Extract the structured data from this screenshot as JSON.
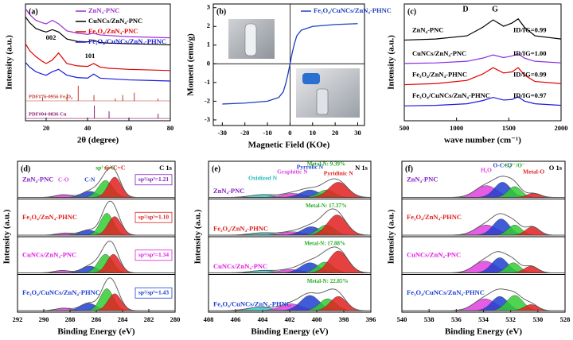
{
  "chart_data": [
    {
      "type": "xrd",
      "panel": "(a)",
      "x_label": "2θ (degree)",
      "y_label": "Intensity (a.u.)",
      "xlim": [
        10,
        80
      ],
      "ylim": [
        0,
        10
      ],
      "xticks": [
        20,
        40,
        60,
        80
      ],
      "legend": "upper right",
      "series": [
        {
          "name": "ZnN₄-PNC",
          "color": "#9b30d0",
          "x": [
            10,
            12,
            15,
            18,
            20,
            23,
            26,
            30,
            35,
            40,
            43,
            46,
            50,
            60,
            70,
            80
          ],
          "values": [
            9.6,
            9.1,
            8.6,
            8.4,
            8.3,
            8.6,
            8.3,
            7.7,
            7.5,
            7.4,
            7.5,
            7.35,
            7.3,
            7.2,
            7.15,
            7.1
          ]
        },
        {
          "name": "CuNCs/ZnN₄-PNC",
          "color": "#000000",
          "x": [
            10,
            12,
            15,
            18,
            20,
            23,
            26,
            30,
            35,
            40,
            43,
            46,
            50,
            60,
            70,
            80
          ],
          "values": [
            8.9,
            8.4,
            7.9,
            7.7,
            7.6,
            7.8,
            7.6,
            7.0,
            6.8,
            6.75,
            6.9,
            6.7,
            6.65,
            6.6,
            6.55,
            6.5
          ]
        },
        {
          "name": "Fe₃O₄/ZnN₄-PNC",
          "color": "#e00000",
          "x": [
            10,
            12,
            15,
            18,
            20,
            23,
            26,
            30,
            35,
            40,
            43,
            46,
            50,
            60,
            70,
            80
          ],
          "values": [
            6.6,
            6.0,
            5.5,
            5.1,
            4.9,
            5.2,
            5.8,
            4.9,
            4.7,
            4.65,
            4.9,
            4.6,
            4.5,
            4.4,
            4.35,
            4.3
          ]
        },
        {
          "name": "Fe₃O₄/CuNCs/ZnN₄-PHNC",
          "color": "#1a1adc",
          "x": [
            10,
            12,
            15,
            18,
            20,
            23,
            26,
            30,
            35,
            40,
            43,
            46,
            50,
            60,
            70,
            80
          ],
          "values": [
            5.0,
            4.6,
            4.2,
            4.0,
            3.9,
            4.2,
            4.4,
            3.9,
            3.7,
            3.65,
            4.0,
            3.65,
            3.6,
            3.5,
            3.45,
            3.4
          ]
        }
      ],
      "annotations": [
        "002",
        "101"
      ],
      "references": [
        {
          "label": "PDF#76-0956 Fe₃O₄",
          "color": "#c0392b",
          "base": 1.7,
          "x": [
            18.3,
            30.1,
            35.5,
            43.1,
            53.4,
            57.0,
            62.6,
            74.0
          ],
          "values": [
            2.0,
            2.3,
            3.0,
            2.2,
            1.9,
            2.2,
            2.4,
            1.9
          ]
        },
        {
          "label": "PDF#04-0836 Cu",
          "color": "#8b1a6b",
          "base": 0.2,
          "x": [
            43.3,
            50.4,
            74.1
          ],
          "values": [
            1.3,
            0.8,
            0.6
          ]
        }
      ]
    },
    {
      "type": "hysteresis",
      "panel": "(b)",
      "x_label": "Magnetic Field (KOe)",
      "y_label": "Moment (emu/g)",
      "xlim": [
        -34,
        33
      ],
      "ylim": [
        -3.3,
        3.2
      ],
      "xticks": [
        -30,
        -20,
        -10,
        0,
        10,
        20,
        30
      ],
      "yticks": [
        -3,
        -2,
        -1,
        0,
        1,
        2,
        3
      ],
      "legend": "upper right",
      "series": [
        {
          "name": "Fe₃O₄/CuNCs/ZnN₄-PHNC",
          "color": "#1f3fbf",
          "x": [
            -30,
            -20,
            -10,
            -5,
            -3,
            -2,
            -1,
            0,
            1,
            2,
            3,
            5,
            10,
            20,
            30
          ],
          "values": [
            -2.15,
            -2.1,
            -2.0,
            -1.8,
            -1.5,
            -1.1,
            -0.6,
            0,
            0.6,
            1.1,
            1.5,
            1.8,
            2.0,
            2.1,
            2.15
          ]
        }
      ]
    },
    {
      "type": "raman",
      "panel": "(c)",
      "x_label": "wave number (cm⁻¹)",
      "y_label": "Intensity (a.u.)",
      "xlim": [
        500,
        2000
      ],
      "ylim": [
        0,
        11
      ],
      "xticks": [
        500,
        1000,
        1500,
        2000
      ],
      "annotations": [
        "D",
        "G"
      ],
      "series": [
        {
          "name": "ZnN₄-PNC",
          "ratio": "ID/IG=0.99",
          "color": "#000000",
          "x": [
            500,
            800,
            1100,
            1250,
            1350,
            1450,
            1530,
            1590,
            1650,
            1750,
            2000
          ],
          "values": [
            7.6,
            7.7,
            8.0,
            8.8,
            9.5,
            8.9,
            9.2,
            9.6,
            8.8,
            8.0,
            7.7
          ]
        },
        {
          "name": "CuNCs/ZnN₄-PNC",
          "ratio": "ID/IG=1.00",
          "color": "#8a2be2",
          "x": [
            500,
            800,
            1100,
            1250,
            1350,
            1450,
            1530,
            1590,
            1650,
            1750,
            2000
          ],
          "values": [
            5.4,
            5.45,
            5.6,
            5.9,
            6.2,
            5.95,
            6.1,
            6.3,
            5.9,
            5.6,
            5.45
          ]
        },
        {
          "name": "Fe₃O₄/ZnN₄-PHNC",
          "ratio": "ID/IG=0.99",
          "color": "#e00000",
          "x": [
            500,
            800,
            1100,
            1250,
            1350,
            1450,
            1530,
            1590,
            1650,
            1750,
            2000
          ],
          "values": [
            3.4,
            3.5,
            3.8,
            4.4,
            5.0,
            4.5,
            4.6,
            5.0,
            4.3,
            3.7,
            3.5
          ]
        },
        {
          "name": "Fe₃O₄/CuNCs/ZnN₄-PHNC",
          "ratio": "ID/IG=0.97",
          "color": "#1a1adc",
          "x": [
            500,
            800,
            1100,
            1250,
            1350,
            1450,
            1530,
            1590,
            1650,
            1750,
            2000
          ],
          "values": [
            1.4,
            1.45,
            1.6,
            1.9,
            2.2,
            1.95,
            2.0,
            2.25,
            1.85,
            1.6,
            1.45
          ]
        }
      ]
    },
    {
      "type": "xps",
      "panel": "(d)",
      "core": "C 1s",
      "x_label": "Binding Energy (eV)",
      "y_label": "Intensity (a.u.)",
      "xlim": [
        292,
        280
      ],
      "ylim": [
        0,
        10
      ],
      "xticks": [
        292,
        290,
        288,
        286,
        284,
        282,
        280
      ],
      "component_colors": [
        "#e040e0",
        "#2040d0",
        "#33cc33",
        "#e02020"
      ],
      "annotations": [
        {
          "text": "C-O",
          "color": "#e040e0"
        },
        {
          "text": "C-N",
          "color": "#2040d0"
        },
        {
          "text": "sp³ C-C",
          "color": "#22aa22"
        },
        {
          "text": "sp² C=C",
          "color": "#e02020"
        }
      ],
      "subpanels": [
        {
          "label": "ZnN₄-PNC",
          "label_color": "#8020c0",
          "note": "sp²/sp³=1.21",
          "note_color": "#8020c0",
          "peaks": [
            {
              "center": 288.5,
              "height": 0.8,
              "width": 0.6
            },
            {
              "center": 286.5,
              "height": 1.8,
              "width": 0.6
            },
            {
              "center": 285.3,
              "height": 5.0,
              "width": 0.55
            },
            {
              "center": 284.6,
              "height": 6.0,
              "width": 0.5
            }
          ]
        },
        {
          "label": "Fe₃O₄/ZnN₄-PHNC",
          "label_color": "#e02020",
          "note": "sp²/sp³=1.10",
          "note_color": "#e02020",
          "peaks": [
            {
              "center": 288.4,
              "height": 0.6,
              "width": 0.6
            },
            {
              "center": 286.6,
              "height": 1.5,
              "width": 0.6
            },
            {
              "center": 285.2,
              "height": 6.5,
              "width": 0.5
            },
            {
              "center": 284.6,
              "height": 5.5,
              "width": 0.5
            }
          ]
        },
        {
          "label": "CuNCs/ZnN₄-PNC",
          "label_color": "#e020e0",
          "note": "sp²/sp³=1.34",
          "note_color": "#e020e0",
          "peaks": [
            {
              "center": 288.6,
              "height": 0.7,
              "width": 0.6
            },
            {
              "center": 286.5,
              "height": 2.0,
              "width": 0.6
            },
            {
              "center": 285.3,
              "height": 5.5,
              "width": 0.55
            },
            {
              "center": 284.7,
              "height": 5.5,
              "width": 0.5
            }
          ]
        },
        {
          "label": "Fe₃O₄/CuNCs/ZnN₄-PHNC",
          "label_color": "#2040d0",
          "note": "sp²/sp³=1.43",
          "note_color": "#2040d0",
          "peaks": [
            {
              "center": 288.5,
              "height": 0.7,
              "width": 0.6
            },
            {
              "center": 286.6,
              "height": 2.2,
              "width": 0.6
            },
            {
              "center": 285.2,
              "height": 6.5,
              "width": 0.5
            },
            {
              "center": 284.6,
              "height": 5.0,
              "width": 0.5
            }
          ]
        }
      ]
    },
    {
      "type": "xps",
      "panel": "(e)",
      "core": "N 1s",
      "x_label": "Binding Energy (eV)",
      "y_label": "Intensity (a.u.)",
      "xlim": [
        408,
        396
      ],
      "ylim": [
        0,
        10
      ],
      "xticks": [
        408,
        406,
        404,
        402,
        400,
        398,
        396
      ],
      "component_colors": [
        "#33cccc",
        "#e040e0",
        "#2040d0",
        "#33cc33",
        "#e02020"
      ],
      "annotations": [
        {
          "text": "Oxidized N",
          "color": "#22bbbb"
        },
        {
          "text": "Graphitic N",
          "color": "#e040e0"
        },
        {
          "text": "Pyrrolic N",
          "color": "#2040d0"
        },
        {
          "text": "Pyridinic N",
          "color": "#e02020"
        }
      ],
      "subpanels": [
        {
          "label": "ZnN₄-PNC",
          "label_color": "#8020c0",
          "note": "Metal-N: 9.39%",
          "note_color": "#22aa22",
          "peaks": [
            {
              "center": 404.0,
              "height": 0.8,
              "width": 0.9
            },
            {
              "center": 401.8,
              "height": 1.2,
              "width": 0.8
            },
            {
              "center": 400.5,
              "height": 2.2,
              "width": 0.7
            },
            {
              "center": 399.3,
              "height": 2.2,
              "width": 0.6
            },
            {
              "center": 398.4,
              "height": 4.5,
              "width": 0.7
            }
          ]
        },
        {
          "label": "Fe₃O₄/ZnN₄-PHNC",
          "label_color": "#e02020",
          "note": "Metal-N: 17.37%",
          "note_color": "#22aa22",
          "peaks": [
            {
              "center": 404.0,
              "height": 0.7,
              "width": 0.9
            },
            {
              "center": 401.8,
              "height": 1.0,
              "width": 0.8
            },
            {
              "center": 400.4,
              "height": 2.5,
              "width": 0.7
            },
            {
              "center": 399.3,
              "height": 3.0,
              "width": 0.6
            },
            {
              "center": 398.5,
              "height": 6.0,
              "width": 0.7
            }
          ]
        },
        {
          "label": "CuNCs/ZnN₄-PNC",
          "label_color": "#e020e0",
          "note": "Metal-N: 17.88%",
          "note_color": "#22aa22",
          "peaks": [
            {
              "center": 404.0,
              "height": 0.7,
              "width": 0.9
            },
            {
              "center": 401.9,
              "height": 1.0,
              "width": 0.8
            },
            {
              "center": 400.5,
              "height": 3.0,
              "width": 0.7
            },
            {
              "center": 399.4,
              "height": 3.2,
              "width": 0.6
            },
            {
              "center": 398.4,
              "height": 6.5,
              "width": 0.7
            }
          ]
        },
        {
          "label": "Fe₃O₄/CuNCs/ZnN₄-PHNC",
          "label_color": "#2040d0",
          "note": "Metal-N: 22.85%",
          "note_color": "#22aa22",
          "peaks": [
            {
              "center": 404.2,
              "height": 1.0,
              "width": 0.9
            },
            {
              "center": 401.9,
              "height": 2.0,
              "width": 0.8
            },
            {
              "center": 400.5,
              "height": 4.5,
              "width": 0.7
            },
            {
              "center": 399.2,
              "height": 3.5,
              "width": 0.6
            },
            {
              "center": 398.4,
              "height": 4.2,
              "width": 0.6
            }
          ]
        }
      ]
    },
    {
      "type": "xps",
      "panel": "(f)",
      "core": "O 1s",
      "x_label": "Binding Energy (eV)",
      "y_label": "Intensity (a.u.)",
      "xlim": [
        540,
        528
      ],
      "ylim": [
        0,
        10
      ],
      "xticks": [
        540,
        538,
        536,
        534,
        532,
        530,
        528
      ],
      "component_colors": [
        "#e040e0",
        "#2040d0",
        "#33cc33",
        "#e02020"
      ],
      "annotations": [
        {
          "text": "H₂O",
          "color": "#e040e0"
        },
        {
          "text": "O-C=O",
          "color": "#2040d0"
        },
        {
          "text": "O₂²⁻/O⁻",
          "color": "#22aa22"
        },
        {
          "text": "Metal-O",
          "color": "#e02020"
        }
      ],
      "subpanels": [
        {
          "label": "ZnN₄-PNC",
          "label_color": "#8020c0",
          "peaks": [
            {
              "center": 533.8,
              "height": 3.5,
              "width": 0.8
            },
            {
              "center": 532.6,
              "height": 4.5,
              "width": 0.6
            },
            {
              "center": 531.7,
              "height": 3.2,
              "width": 0.5
            },
            {
              "center": 530.3,
              "height": 1.2,
              "width": 0.5
            }
          ]
        },
        {
          "label": "Fe₃O₄/ZnN₄-PHNC",
          "label_color": "#e02020",
          "peaks": [
            {
              "center": 533.8,
              "height": 3.0,
              "width": 0.8
            },
            {
              "center": 532.7,
              "height": 4.8,
              "width": 0.6
            },
            {
              "center": 531.7,
              "height": 3.0,
              "width": 0.5
            },
            {
              "center": 530.4,
              "height": 2.5,
              "width": 0.5
            }
          ]
        },
        {
          "label": "CuNCs/ZnN₄-PNC",
          "label_color": "#e020e0",
          "peaks": [
            {
              "center": 533.9,
              "height": 3.5,
              "width": 0.8
            },
            {
              "center": 532.8,
              "height": 4.5,
              "width": 0.6
            },
            {
              "center": 531.8,
              "height": 3.0,
              "width": 0.5
            },
            {
              "center": 530.5,
              "height": 2.0,
              "width": 0.5
            }
          ]
        },
        {
          "label": "Fe₃O₄/CuNCs/ZnN₄-PHNC",
          "label_color": "#2040d0",
          "peaks": [
            {
              "center": 533.9,
              "height": 3.5,
              "width": 0.8
            },
            {
              "center": 532.8,
              "height": 4.2,
              "width": 0.6
            },
            {
              "center": 531.7,
              "height": 4.5,
              "width": 0.6
            },
            {
              "center": 530.5,
              "height": 1.8,
              "width": 0.5
            }
          ]
        }
      ]
    }
  ]
}
